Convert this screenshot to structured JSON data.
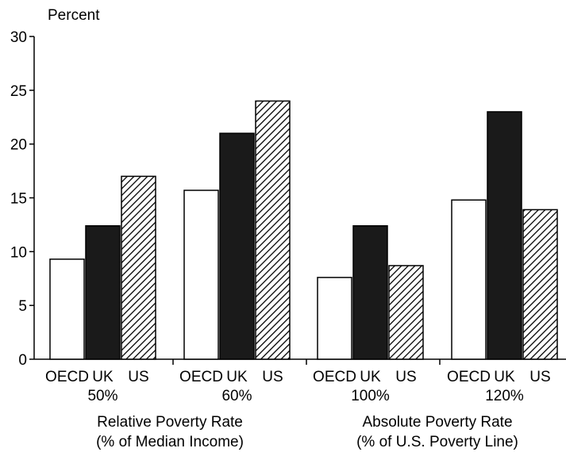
{
  "chart_data": {
    "type": "bar",
    "ylabel": "Percent",
    "ylim": [
      0,
      30
    ],
    "yticks": [
      0,
      5,
      10,
      15,
      20,
      25,
      30
    ],
    "grid": false,
    "legend": "none",
    "series_names": [
      "OECD",
      "UK",
      "US"
    ],
    "groups": [
      {
        "label": "50%",
        "values": [
          9.3,
          12.4,
          17.0
        ]
      },
      {
        "label": "60%",
        "values": [
          15.7,
          21.0,
          24.0
        ]
      },
      {
        "label": "100%",
        "values": [
          7.6,
          12.4,
          8.7
        ]
      },
      {
        "label": "120%",
        "values": [
          14.8,
          23.0,
          13.9
        ]
      }
    ],
    "sections": [
      {
        "line1": "Relative Poverty Rate",
        "line2": "(% of Median Income)",
        "groups": [
          0,
          1
        ]
      },
      {
        "line1": "Absolute Poverty Rate",
        "line2": "(% of U.S. Poverty Line)",
        "groups": [
          2,
          3
        ]
      }
    ],
    "styles": [
      {
        "fill": "#ffffff",
        "pattern": "none"
      },
      {
        "fill": "#1a1a1a",
        "pattern": "none"
      },
      {
        "fill": "#ffffff",
        "pattern": "diagonal-hatch"
      }
    ]
  }
}
